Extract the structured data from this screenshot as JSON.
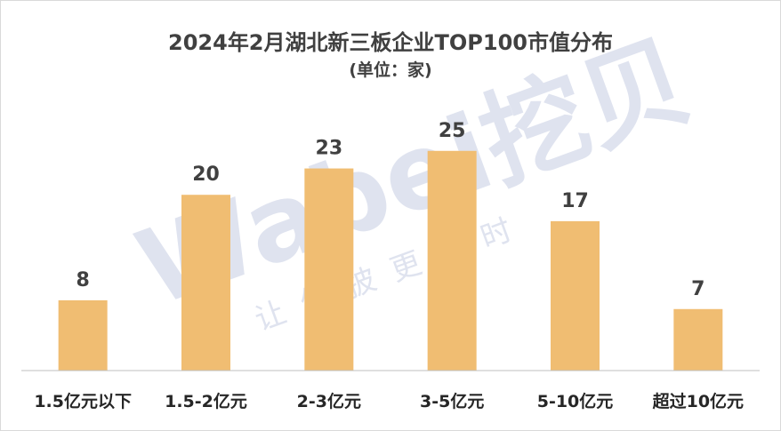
{
  "watermark": {
    "brand": "Wabei挖贝",
    "slogan": "让信披更及时"
  },
  "colors": {
    "bar": "#f0bd72",
    "axis": "#bfbfbf",
    "watermark": "#dfe3ef"
  },
  "chart_data": {
    "type": "bar",
    "title": "2024年2月湖北新三板企业TOP100市值分布",
    "subtitle": "(单位：家)",
    "categories": [
      "1.5亿元以下",
      "1.5-2亿元",
      "2-3亿元",
      "3-5亿元",
      "5-10亿元",
      "超过10亿元"
    ],
    "values": [
      8,
      20,
      23,
      25,
      17,
      7
    ],
    "xlabel": "",
    "ylabel": "",
    "ylim": [
      0,
      27
    ],
    "grid": false,
    "data_labels": true,
    "legend": "none"
  }
}
